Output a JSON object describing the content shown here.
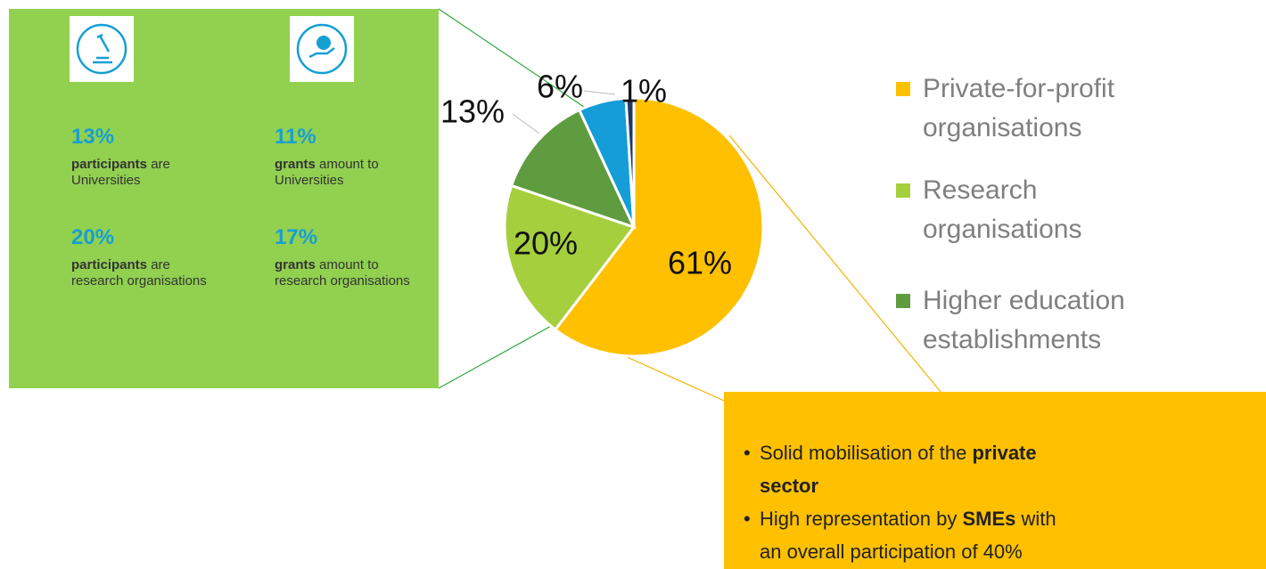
{
  "panel": {
    "stats": [
      {
        "value": "13%",
        "bold": "participants",
        "text": " are Universities"
      },
      {
        "value": "11%",
        "bold": "grants",
        "text": " amount to Universities"
      },
      {
        "value": "20%",
        "bold": "participants",
        "text": " are research organisations"
      },
      {
        "value": "17%",
        "bold": "grants",
        "text": " amount to research organisations"
      }
    ]
  },
  "chart_data": {
    "type": "pie",
    "categories": [
      "Private-for-profit organisations",
      "Research organisations",
      "Higher education establishments",
      null,
      null
    ],
    "values": [
      61,
      20,
      13,
      6,
      1
    ],
    "value_labels": [
      "61%",
      "20%",
      "13%",
      "6%",
      "1%"
    ],
    "colors": [
      "#ffc000",
      "#a6cf3e",
      "#5e9c3f",
      "#149dd6",
      "#1f3864"
    ]
  },
  "callout": {
    "bullets": [
      [
        "Solid mobilisation of the ",
        "private sector"
      ],
      [
        "High representation by ",
        "SMEs",
        " with an overall participation of 40%"
      ]
    ]
  }
}
